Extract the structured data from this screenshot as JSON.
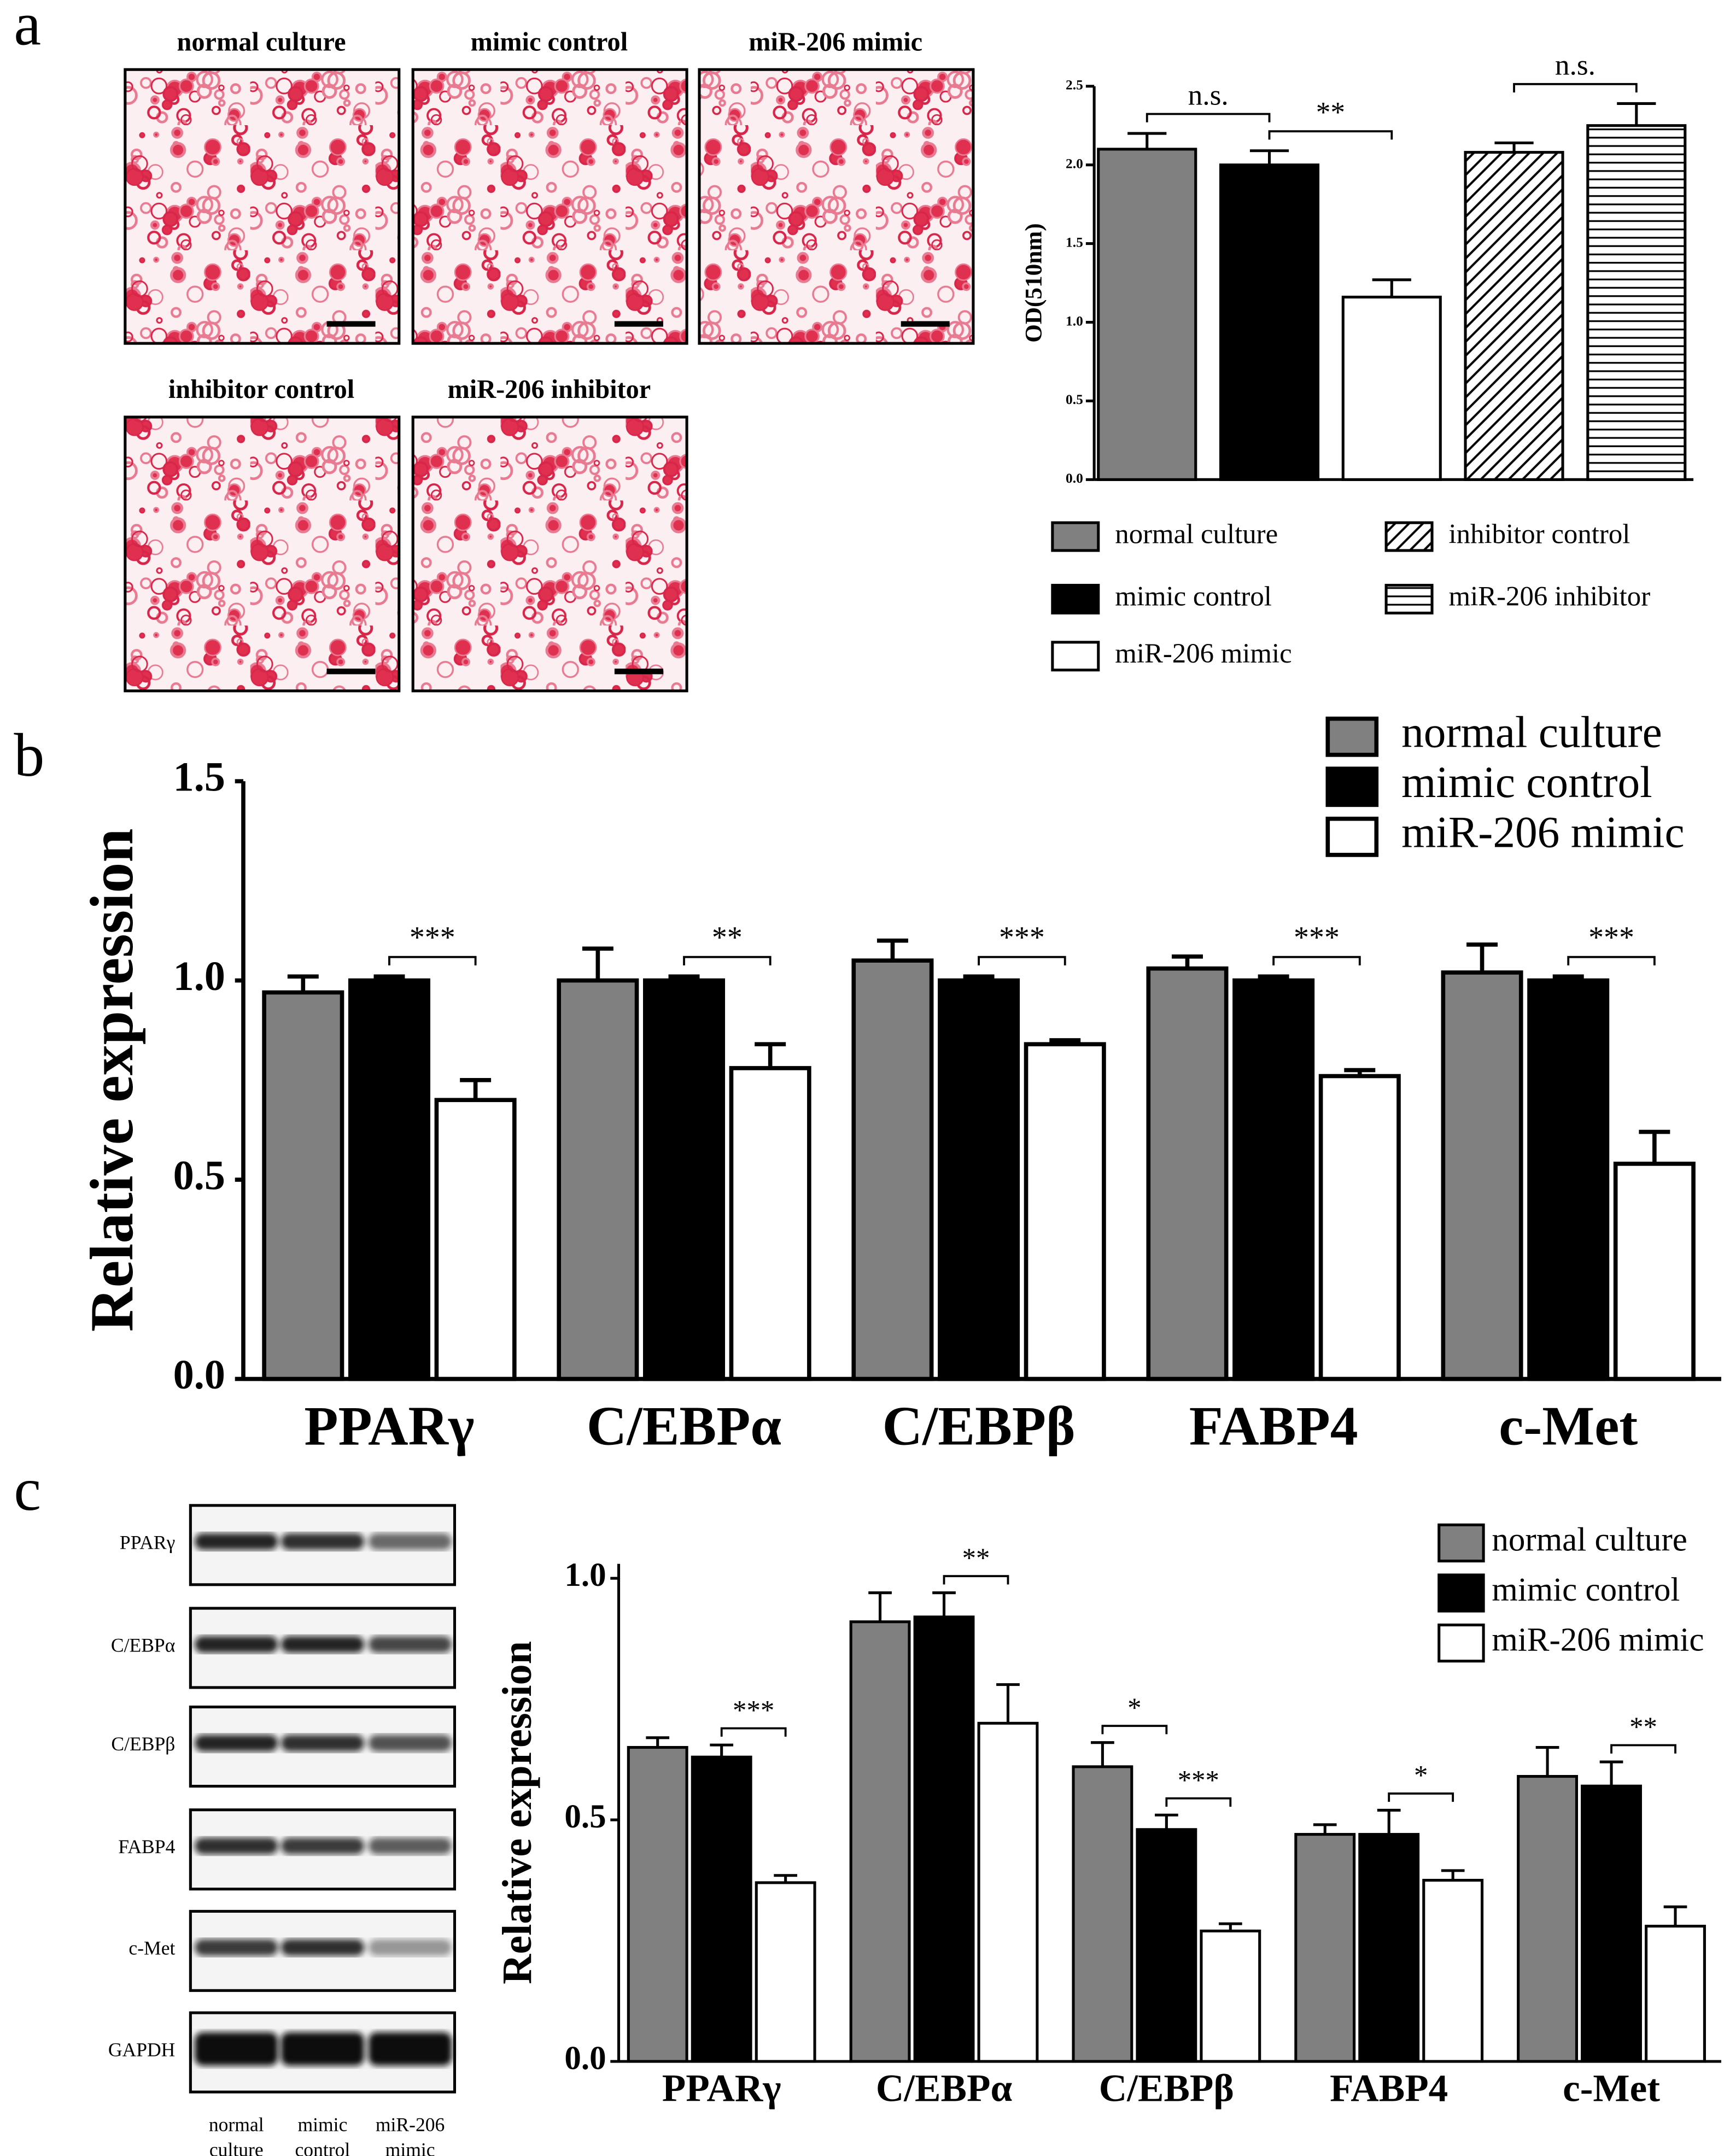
{
  "panel_labels": [
    "a",
    "b",
    "c"
  ],
  "micrographs": [
    "normal culture",
    "mimic control",
    "miR-206 mimic",
    "inhibitor control",
    "miR-206 inhibitor"
  ],
  "western_blot": {
    "bands": [
      "PPARγ",
      "C/EBPα",
      "C/EBPβ",
      "FABP4",
      "c-Met",
      "GAPDH"
    ],
    "lanes": [
      [
        "normal",
        "culture"
      ],
      [
        "mimic",
        "control"
      ],
      [
        "miR-206",
        "mimic"
      ]
    ]
  },
  "chart_data": [
    {
      "type": "bar",
      "ylabel": "OD(510nm)",
      "ylim": [
        0,
        2.5
      ],
      "yticks": [
        {
          "value": 0,
          "label": "0.0"
        },
        0.5,
        {
          "value": 1,
          "label": "1.0"
        },
        1.5,
        {
          "value": 2,
          "label": "2.0"
        },
        2.5
      ],
      "series": [
        {
          "name": "normal culture",
          "color": "#808080",
          "values": [
            2.1
          ],
          "errors": [
            0.1
          ]
        },
        {
          "name": "mimic control",
          "color": "#000000",
          "values": [
            2.0
          ],
          "errors": [
            0.09
          ]
        },
        {
          "name": "miR-206 mimic",
          "color": "#ffffff",
          "values": [
            1.16
          ],
          "errors": [
            0.11
          ]
        },
        {
          "name": "inhibitor control",
          "color": "#ffffff",
          "pattern": "diagonal",
          "values": [
            2.08
          ],
          "errors": [
            0.06
          ]
        },
        {
          "name": "miR-206 inhibitor",
          "color": "#ffffff",
          "pattern": "horizontal",
          "values": [
            2.25
          ],
          "errors": [
            0.14
          ]
        }
      ],
      "annotations": [
        "n.s.",
        "**",
        "n.s."
      ]
    },
    {
      "type": "bar",
      "ylabel": "Relative expression",
      "ylim": [
        0,
        1.5
      ],
      "yticks": [
        {
          "value": 0,
          "label": "0.0"
        },
        0.5,
        {
          "value": 1,
          "label": "1.0"
        },
        1.5
      ],
      "categories": [
        "PPARγ",
        "C/EBPα",
        "C/EBPβ",
        "FABP4",
        "c-Met"
      ],
      "series": [
        {
          "name": "normal culture",
          "color": "#808080",
          "values": [
            0.97,
            1.0,
            1.05,
            1.03,
            1.02
          ],
          "errors": [
            0.04,
            0.08,
            0.05,
            0.03,
            0.07
          ]
        },
        {
          "name": "mimic control",
          "color": "#000000",
          "values": [
            1.0,
            1.0,
            1.0,
            1.0,
            1.0
          ],
          "errors": [
            0.01,
            0.01,
            0.01,
            0.01,
            0.01
          ]
        },
        {
          "name": "miR-206 mimic",
          "color": "#ffffff",
          "values": [
            0.7,
            0.78,
            0.84,
            0.76,
            0.54
          ],
          "errors": [
            0.05,
            0.06,
            0.01,
            0.015,
            0.08
          ]
        }
      ],
      "annotations": [
        "***",
        "**",
        "***",
        "***",
        "***"
      ]
    },
    {
      "type": "bar",
      "ylabel": "Relative expression",
      "ylim": [
        0,
        1.03
      ],
      "yticks": [
        {
          "value": 0,
          "label": "0.0"
        },
        0.5,
        {
          "value": 1,
          "label": "1.0"
        }
      ],
      "categories": [
        "PPARγ",
        "C/EBPα",
        "C/EBPβ",
        "FABP4",
        "c-Met"
      ],
      "series": [
        {
          "name": "normal culture",
          "color": "#808080",
          "values": [
            0.65,
            0.91,
            0.61,
            0.47,
            0.59
          ],
          "errors": [
            0.02,
            0.06,
            0.05,
            0.02,
            0.06
          ]
        },
        {
          "name": "mimic control",
          "color": "#000000",
          "values": [
            0.63,
            0.92,
            0.48,
            0.47,
            0.57
          ],
          "errors": [
            0.025,
            0.05,
            0.03,
            0.05,
            0.05
          ]
        },
        {
          "name": "miR-206 mimic",
          "color": "#ffffff",
          "values": [
            0.37,
            0.7,
            0.27,
            0.375,
            0.28
          ],
          "errors": [
            0.015,
            0.08,
            0.015,
            0.02,
            0.04
          ]
        }
      ],
      "annotations": [
        "***",
        "**",
        "*",
        "***",
        "*",
        "**"
      ]
    }
  ]
}
